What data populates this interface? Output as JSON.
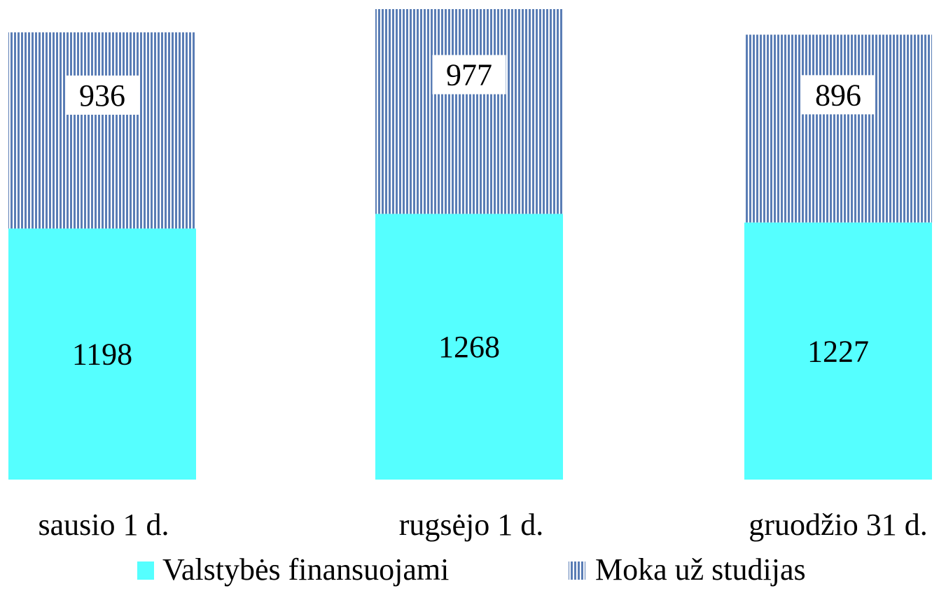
{
  "chart_data": {
    "type": "bar",
    "stacked": true,
    "categories": [
      "sausio 1 d.",
      "rugsėjo 1 d.",
      "gruodžio 31 d."
    ],
    "series": [
      {
        "name": "Valstybės finansuojami",
        "values": [
          1198,
          1268,
          1227
        ],
        "color": "#55FFFF",
        "pattern": "solid"
      },
      {
        "name": "Moka už studijas",
        "values": [
          936,
          977,
          896
        ],
        "color": "#5A7DB5",
        "pattern": "vertical-stripes"
      }
    ],
    "title": "",
    "xlabel": "",
    "ylabel": "",
    "ylim": [
      0,
      2245
    ],
    "grid": false,
    "legend": "bottom",
    "data_labels": true
  }
}
